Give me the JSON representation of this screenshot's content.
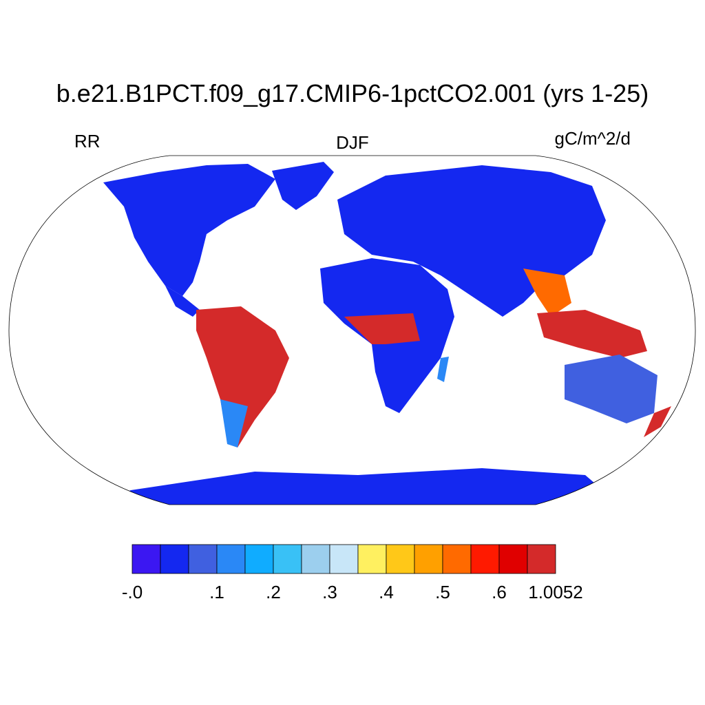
{
  "title": "b.e21.B1PCT.f09_g17.CMIP6-1pctCO2.001 (yrs 1-25)",
  "left_label": "RR",
  "center_label": "DJF",
  "right_label": "gC/m^2/d",
  "colorbar": {
    "colors": [
      "#3b17f2",
      "#1428f0",
      "#4060e0",
      "#2a88f6",
      "#10acff",
      "#39c1f6",
      "#9ccfee",
      "#c8e6f8",
      "#fff060",
      "#ffc818",
      "#ffa000",
      "#ff6a00",
      "#ff1a00",
      "#e00000",
      "#d42a2a"
    ],
    "tick_labels": [
      {
        "label": "-.0",
        "after_box": 0
      },
      {
        "label": ".1",
        "after_box": 3
      },
      {
        "label": ".2",
        "after_box": 5
      },
      {
        "label": ".3",
        "after_box": 7
      },
      {
        "label": ".4",
        "after_box": 9
      },
      {
        "label": ".5",
        "after_box": 11
      },
      {
        "label": ".6",
        "after_box": 13
      },
      {
        "label": "1.0052",
        "after_box": 15
      }
    ]
  },
  "map_colors": {
    "ocean": "#ffffff",
    "land_base": "#1428f0",
    "land_light": "#2a88f6",
    "tropics_red": "#d42a2a",
    "warm_orange": "#ff6a00",
    "yellow": "#fff060"
  }
}
